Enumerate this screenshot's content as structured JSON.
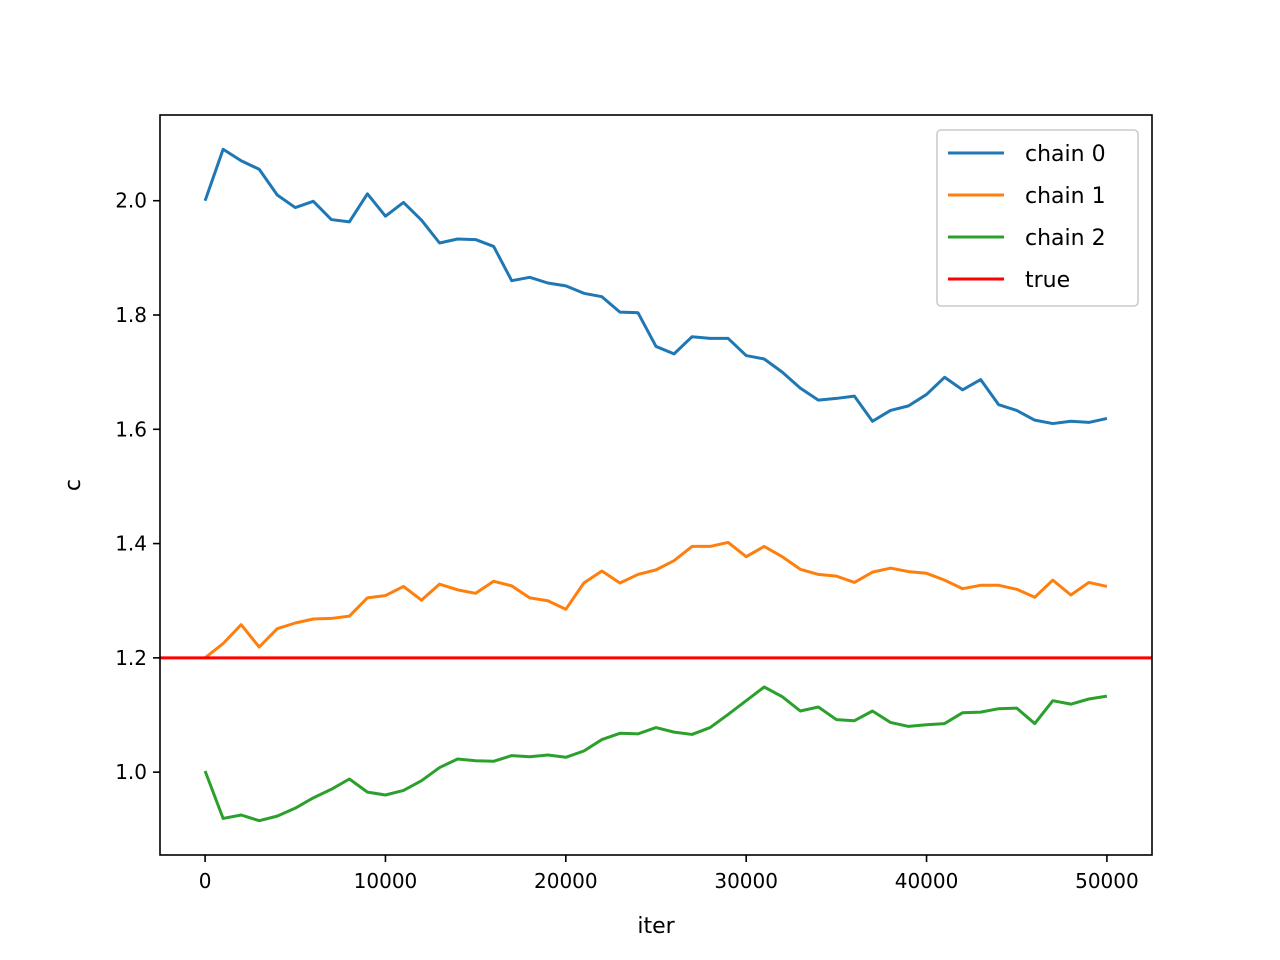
{
  "chart_data": {
    "type": "line",
    "title": "",
    "xlabel": "iter",
    "ylabel": "c",
    "xlim": [
      -2500,
      52500
    ],
    "ylim": [
      0.855,
      2.15
    ],
    "xticks": [
      0,
      10000,
      20000,
      30000,
      40000,
      50000
    ],
    "xtick_labels": [
      "0",
      "10000",
      "20000",
      "30000",
      "40000",
      "50000"
    ],
    "yticks": [
      1.0,
      1.2,
      1.4,
      1.6,
      1.8,
      2.0
    ],
    "ytick_labels": [
      "1.0",
      "1.2",
      "1.4",
      "1.6",
      "1.8",
      "2.0"
    ],
    "grid": false,
    "legend_position": "top-right",
    "x": [
      0,
      1000,
      2000,
      3000,
      4000,
      5000,
      6000,
      7000,
      8000,
      9000,
      10000,
      11000,
      12000,
      13000,
      14000,
      15000,
      16000,
      17000,
      18000,
      19000,
      20000,
      21000,
      22000,
      23000,
      24000,
      25000,
      26000,
      27000,
      28000,
      29000,
      30000,
      31000,
      32000,
      33000,
      34000,
      35000,
      36000,
      37000,
      38000,
      39000,
      40000,
      41000,
      42000,
      43000,
      44000,
      45000,
      46000,
      47000,
      48000,
      49000,
      50000
    ],
    "series": [
      {
        "name": "chain 0",
        "color": "#1f77b4",
        "values": [
          2.0,
          2.09,
          2.07,
          2.055,
          2.01,
          1.988,
          1.999,
          1.967,
          1.963,
          2.012,
          1.973,
          1.997,
          1.966,
          1.926,
          1.933,
          1.932,
          1.92,
          1.86,
          1.866,
          1.856,
          1.851,
          1.838,
          1.832,
          1.805,
          1.804,
          1.745,
          1.732,
          1.762,
          1.759,
          1.759,
          1.729,
          1.723,
          1.7,
          1.672,
          1.651,
          1.654,
          1.658,
          1.614,
          1.633,
          1.641,
          1.661,
          1.691,
          1.669,
          1.687,
          1.643,
          1.633,
          1.616,
          1.61,
          1.614,
          1.612,
          1.619
        ]
      },
      {
        "name": "chain 1",
        "color": "#ff7f0e",
        "values": [
          1.2,
          1.225,
          1.258,
          1.219,
          1.251,
          1.261,
          1.268,
          1.269,
          1.273,
          1.305,
          1.309,
          1.325,
          1.301,
          1.329,
          1.319,
          1.313,
          1.334,
          1.326,
          1.305,
          1.3,
          1.285,
          1.331,
          1.352,
          1.331,
          1.346,
          1.354,
          1.37,
          1.395,
          1.395,
          1.402,
          1.377,
          1.395,
          1.377,
          1.355,
          1.346,
          1.343,
          1.332,
          1.35,
          1.357,
          1.351,
          1.348,
          1.336,
          1.321,
          1.327,
          1.327,
          1.32,
          1.306,
          1.336,
          1.31,
          1.332,
          1.325
        ]
      },
      {
        "name": "chain 2",
        "color": "#2ca02c",
        "values": [
          1.002,
          0.919,
          0.925,
          0.915,
          0.923,
          0.937,
          0.955,
          0.97,
          0.988,
          0.965,
          0.96,
          0.968,
          0.985,
          1.008,
          1.023,
          1.02,
          1.019,
          1.029,
          1.027,
          1.03,
          1.026,
          1.037,
          1.057,
          1.068,
          1.067,
          1.078,
          1.07,
          1.066,
          1.078,
          1.101,
          1.125,
          1.149,
          1.132,
          1.107,
          1.114,
          1.092,
          1.09,
          1.107,
          1.087,
          1.08,
          1.083,
          1.085,
          1.104,
          1.105,
          1.111,
          1.112,
          1.085,
          1.125,
          1.119,
          1.128,
          1.133
        ]
      }
    ],
    "reference_lines": [
      {
        "name": "true",
        "color": "#ff0000",
        "y": 1.2
      }
    ]
  }
}
